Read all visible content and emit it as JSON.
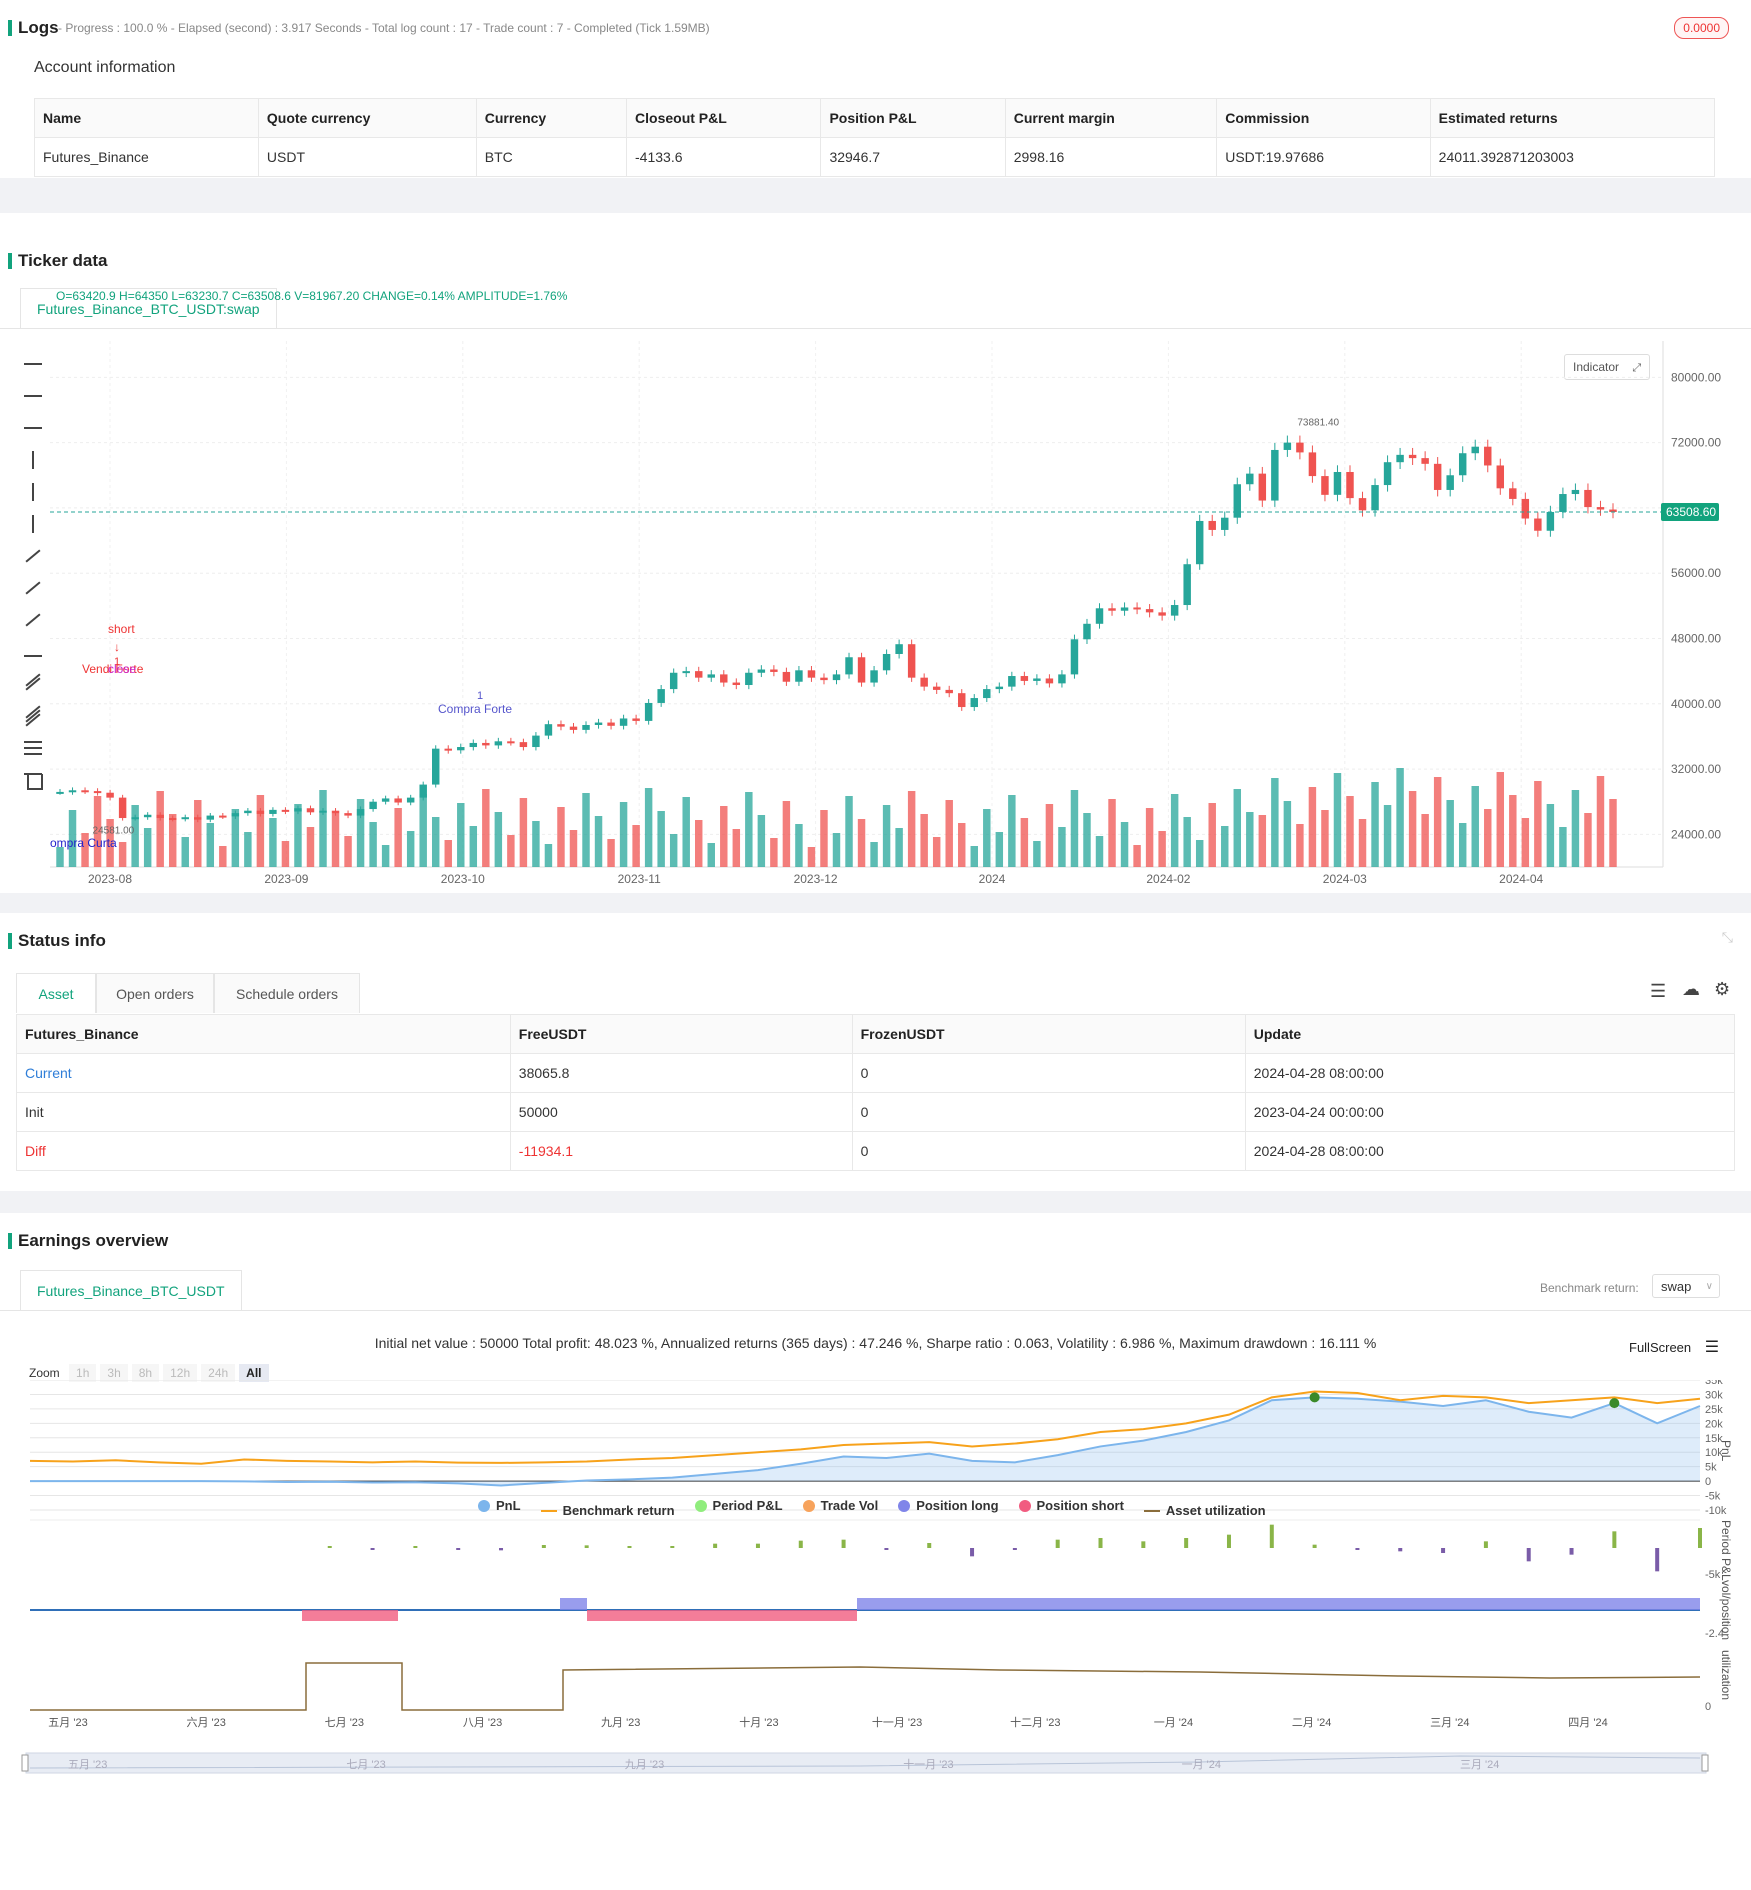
{
  "logs": {
    "title": "Logs",
    "progress_line": "- Progress : 100.0 % - Elapsed (second) : 3.917  Seconds - Total log count : 17 - Trade count : 7 - Completed (Tick 1.59MB)",
    "badge": "0.0000"
  },
  "account": {
    "heading": "Account information",
    "columns": [
      "Name",
      "Quote currency",
      "Currency",
      "Closeout P&L",
      "Position P&L",
      "Current margin",
      "Commission",
      "Estimated returns"
    ],
    "row": [
      "Futures_Binance",
      "USDT",
      "BTC",
      "-4133.6",
      "32946.7",
      "2998.16",
      "USDT:19.97686",
      "24011.392871203003"
    ]
  },
  "ticker": {
    "title": "Ticker data",
    "tab": "Futures_Binance_BTC_USDT:swap",
    "ohlc_line": "O=63420.9 H=64350 L=63230.7 C=63508.6 V=81967.20 CHANGE=0.14% AMPLITUDE=1.76%",
    "indicator_btn": "Indicator",
    "current_price_label": "63508.60",
    "high_label": "73881.40",
    "low_label": "24581.00",
    "annotations": {
      "short": "short",
      "one_a": "1",
      "vendi": "Vendi Forte",
      "close": "close",
      "compra_forte": "Compra Forte",
      "compra_curta": "ompra Curta",
      "one_b": "1"
    },
    "colors": {
      "up": "#26a69a",
      "down": "#ef5350",
      "accent": "#12a37d"
    }
  },
  "chart_data": [
    {
      "type": "candlestick",
      "title": "",
      "x_ticks": [
        "2023-08",
        "2023-09",
        "2023-10",
        "2023-11",
        "2023-12",
        "2024",
        "2024-02",
        "2024-03",
        "2024-04"
      ],
      "y_ticks": [
        24000,
        32000,
        40000,
        48000,
        56000,
        64000,
        72000,
        80000
      ],
      "y_tick_labels": [
        "24000.00",
        "32000.00",
        "40000.00",
        "48000.00",
        "56000.00",
        "",
        "72000.00",
        "80000.00"
      ],
      "ylim": [
        20000,
        82000
      ],
      "close_series": [
        29200,
        29400,
        29300,
        29100,
        28500,
        26000,
        26100,
        26400,
        26000,
        25900,
        26100,
        25800,
        26300,
        26200,
        26600,
        26900,
        26500,
        27000,
        26800,
        27200,
        26700,
        26900,
        26600,
        26300,
        27100,
        28000,
        28400,
        27900,
        28500,
        30100,
        34500,
        34300,
        34700,
        35200,
        34900,
        35400,
        35300,
        34700,
        36100,
        37500,
        37200,
        36800,
        37400,
        37700,
        37300,
        38200,
        37900,
        40100,
        41800,
        43800,
        44000,
        43200,
        43600,
        42600,
        42300,
        43800,
        44200,
        43900,
        42700,
        44100,
        43200,
        42900,
        43600,
        45700,
        42600,
        44100,
        46100,
        47300,
        43200,
        42100,
        41700,
        41300,
        39600,
        40700,
        41800,
        42100,
        43400,
        42800,
        43100,
        42500,
        43600,
        47900,
        49800,
        51700,
        51400,
        51800,
        51600,
        51200,
        50800,
        52100,
        57100,
        62400,
        61300,
        62800,
        66900,
        68200,
        64900,
        71100,
        72000,
        70800,
        67900,
        65600,
        68400,
        65200,
        63700,
        66800,
        69600,
        70500,
        70100,
        69400,
        66200,
        68000,
        70700,
        71500,
        69200,
        66400,
        65100,
        62700,
        61200,
        63500,
        65700,
        66200,
        64100,
        63800,
        63500
      ],
      "volume_scale": "relative"
    },
    {
      "type": "line",
      "title": "",
      "summary": "Initial net value : 50000 Total profit: 48.023 %, Annualized returns (365 days) : 47.246 %, Sharpe ratio : 0.063, Volatility : 6.986 %, Maximum drawdown : 16.111 %",
      "x_ticks": [
        "五月 '23",
        "六月 '23",
        "七月 '23",
        "八月 '23",
        "九月 '23",
        "十月 '23",
        "十一月 '23",
        "十二月 '23",
        "一月 '24",
        "二月 '24",
        "三月 '24",
        "四月 '24"
      ],
      "y_ticks": [
        -10000,
        -5000,
        0,
        5000,
        10000,
        15000,
        20000,
        25000,
        30000,
        35000
      ],
      "y_tick_labels": [
        "-10k",
        "-5k",
        "0",
        "5k",
        "10k",
        "15k",
        "20k",
        "25k",
        "30k",
        "35k"
      ],
      "ylabel": "PnL",
      "series": [
        {
          "name": "PnL",
          "values": [
            0,
            0,
            0,
            0,
            0,
            -100,
            -300,
            -200,
            -500,
            -400,
            -800,
            -1500,
            -600,
            200,
            600,
            1200,
            2500,
            3800,
            6000,
            8500,
            8000,
            9500,
            7000,
            6500,
            9000,
            12000,
            14000,
            17000,
            21000,
            28000,
            29000,
            28500,
            27500,
            26000,
            28000,
            24000,
            22000,
            27000,
            20000,
            26000
          ]
        },
        {
          "name": "Benchmark return",
          "values": [
            7000,
            6800,
            7200,
            6500,
            6000,
            7500,
            7000,
            6800,
            6500,
            6800,
            6400,
            6300,
            6500,
            6800,
            7500,
            8000,
            9000,
            10000,
            11000,
            12500,
            13000,
            13500,
            12000,
            13000,
            14500,
            17000,
            18000,
            20000,
            23000,
            29000,
            31000,
            30500,
            28000,
            29500,
            29000,
            27000,
            28000,
            29000,
            27000,
            28500
          ]
        }
      ],
      "legend": [
        "PnL",
        "Benchmark return",
        "Period P&L",
        "Trade Vol",
        "Position long",
        "Position short",
        "Asset utilization"
      ],
      "legend_colors": [
        "#7cb5ec",
        "#f7a21b",
        "#90ed7d",
        "#f7a35c",
        "#8085e9",
        "#f15c80",
        "#8a6d3b"
      ],
      "period_pnl_label": "-5k",
      "position_label": "-2.4",
      "utilization_label": "0",
      "axis_titles": [
        "PnL",
        "Period P&L",
        "vol/position",
        "utilization"
      ]
    }
  ],
  "status": {
    "title": "Status info",
    "tabs": [
      "Asset",
      "Open orders",
      "Schedule orders"
    ],
    "columns": [
      "Futures_Binance",
      "FreeUSDT",
      "FrozenUSDT",
      "Update"
    ],
    "rows": [
      {
        "label": "Current",
        "free": "38065.8",
        "frozen": "0",
        "update": "2024-04-28 08:00:00"
      },
      {
        "label": "Init",
        "free": "50000",
        "frozen": "0",
        "update": "2023-04-24 00:00:00"
      },
      {
        "label": "Diff",
        "free": "-11934.1",
        "frozen": "0",
        "update": "2024-04-28 08:00:00"
      }
    ]
  },
  "earnings": {
    "title": "Earnings overview",
    "tab": "Futures_Binance_BTC_USDT",
    "benchmark_label": "Benchmark return:",
    "benchmark_value": "swap",
    "fullscreen": "FullScreen",
    "zoom_label": "Zoom",
    "zoom_options": [
      "1h",
      "3h",
      "8h",
      "12h",
      "24h",
      "All"
    ],
    "navigator_ticks": [
      "五月 '23",
      "七月 '23",
      "九月 '23",
      "十一月 '23",
      "一月 '24",
      "三月 '24"
    ]
  }
}
